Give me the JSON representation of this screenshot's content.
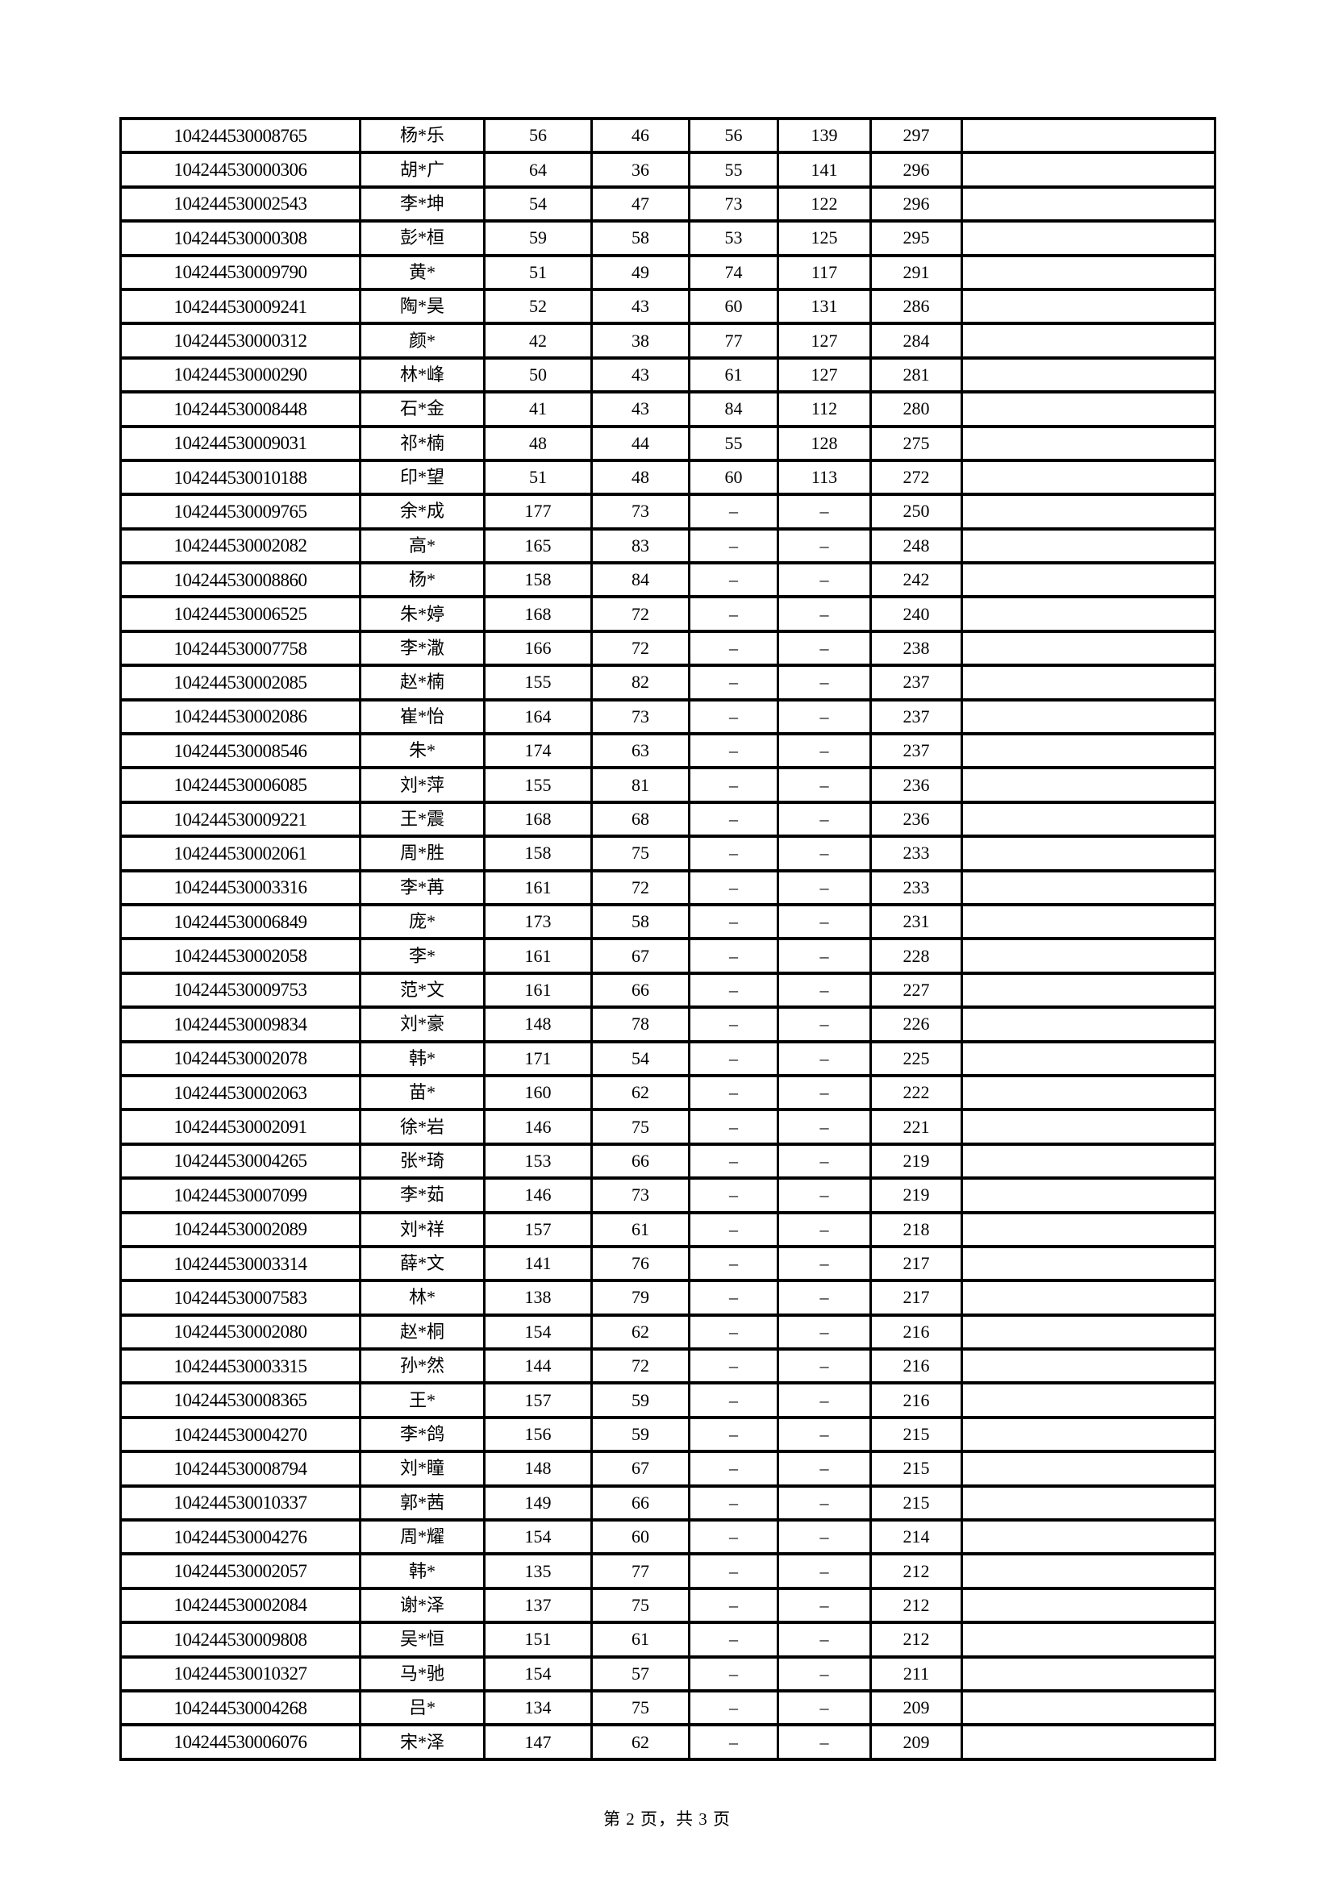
{
  "footer": {
    "text": "第 2 页，共 3 页"
  },
  "table": {
    "rows": [
      {
        "cells": [
          "104244530008765",
          "杨*乐",
          "56",
          "46",
          "56",
          "139",
          "297",
          ""
        ]
      },
      {
        "cells": [
          "104244530000306",
          "胡*广",
          "64",
          "36",
          "55",
          "141",
          "296",
          ""
        ]
      },
      {
        "cells": [
          "104244530002543",
          "李*坤",
          "54",
          "47",
          "73",
          "122",
          "296",
          ""
        ]
      },
      {
        "cells": [
          "104244530000308",
          "彭*桓",
          "59",
          "58",
          "53",
          "125",
          "295",
          ""
        ]
      },
      {
        "cells": [
          "104244530009790",
          "黄*",
          "51",
          "49",
          "74",
          "117",
          "291",
          ""
        ]
      },
      {
        "cells": [
          "104244530009241",
          "陶*昊",
          "52",
          "43",
          "60",
          "131",
          "286",
          ""
        ]
      },
      {
        "cells": [
          "104244530000312",
          "颜*",
          "42",
          "38",
          "77",
          "127",
          "284",
          ""
        ]
      },
      {
        "cells": [
          "104244530000290",
          "林*峰",
          "50",
          "43",
          "61",
          "127",
          "281",
          ""
        ]
      },
      {
        "cells": [
          "104244530008448",
          "石*金",
          "41",
          "43",
          "84",
          "112",
          "280",
          ""
        ]
      },
      {
        "cells": [
          "104244530009031",
          "祁*楠",
          "48",
          "44",
          "55",
          "128",
          "275",
          ""
        ]
      },
      {
        "cells": [
          "104244530010188",
          "印*望",
          "51",
          "48",
          "60",
          "113",
          "272",
          ""
        ]
      },
      {
        "cells": [
          "104244530009765",
          "余*成",
          "177",
          "73",
          "–",
          "–",
          "250",
          ""
        ]
      },
      {
        "cells": [
          "104244530002082",
          "高*",
          "165",
          "83",
          "–",
          "–",
          "248",
          ""
        ]
      },
      {
        "cells": [
          "104244530008860",
          "杨*",
          "158",
          "84",
          "–",
          "–",
          "242",
          ""
        ]
      },
      {
        "cells": [
          "104244530006525",
          "朱*婷",
          "168",
          "72",
          "–",
          "–",
          "240",
          ""
        ]
      },
      {
        "cells": [
          "104244530007758",
          "李*潵",
          "166",
          "72",
          "–",
          "–",
          "238",
          ""
        ]
      },
      {
        "cells": [
          "104244530002085",
          "赵*楠",
          "155",
          "82",
          "–",
          "–",
          "237",
          ""
        ]
      },
      {
        "cells": [
          "104244530002086",
          "崔*怡",
          "164",
          "73",
          "–",
          "–",
          "237",
          ""
        ]
      },
      {
        "cells": [
          "104244530008546",
          "朱*",
          "174",
          "63",
          "–",
          "–",
          "237",
          ""
        ]
      },
      {
        "cells": [
          "104244530006085",
          "刘*萍",
          "155",
          "81",
          "–",
          "–",
          "236",
          ""
        ]
      },
      {
        "cells": [
          "104244530009221",
          "王*震",
          "168",
          "68",
          "–",
          "–",
          "236",
          ""
        ]
      },
      {
        "cells": [
          "104244530002061",
          "周*胜",
          "158",
          "75",
          "–",
          "–",
          "233",
          ""
        ]
      },
      {
        "cells": [
          "104244530003316",
          "李*苒",
          "161",
          "72",
          "–",
          "–",
          "233",
          ""
        ]
      },
      {
        "cells": [
          "104244530006849",
          "庞*",
          "173",
          "58",
          "–",
          "–",
          "231",
          ""
        ]
      },
      {
        "cells": [
          "104244530002058",
          "李*",
          "161",
          "67",
          "–",
          "–",
          "228",
          ""
        ]
      },
      {
        "cells": [
          "104244530009753",
          "范*文",
          "161",
          "66",
          "–",
          "–",
          "227",
          ""
        ]
      },
      {
        "cells": [
          "104244530009834",
          "刘*豪",
          "148",
          "78",
          "–",
          "–",
          "226",
          ""
        ]
      },
      {
        "cells": [
          "104244530002078",
          "韩*",
          "171",
          "54",
          "–",
          "–",
          "225",
          ""
        ]
      },
      {
        "cells": [
          "104244530002063",
          "苗*",
          "160",
          "62",
          "–",
          "–",
          "222",
          ""
        ]
      },
      {
        "cells": [
          "104244530002091",
          "徐*岩",
          "146",
          "75",
          "–",
          "–",
          "221",
          ""
        ]
      },
      {
        "cells": [
          "104244530004265",
          "张*琦",
          "153",
          "66",
          "–",
          "–",
          "219",
          ""
        ]
      },
      {
        "cells": [
          "104244530007099",
          "李*茹",
          "146",
          "73",
          "–",
          "–",
          "219",
          ""
        ]
      },
      {
        "cells": [
          "104244530002089",
          "刘*祥",
          "157",
          "61",
          "–",
          "–",
          "218",
          ""
        ]
      },
      {
        "cells": [
          "104244530003314",
          "薛*文",
          "141",
          "76",
          "–",
          "–",
          "217",
          ""
        ]
      },
      {
        "cells": [
          "104244530007583",
          "林*",
          "138",
          "79",
          "–",
          "–",
          "217",
          ""
        ]
      },
      {
        "cells": [
          "104244530002080",
          "赵*桐",
          "154",
          "62",
          "–",
          "–",
          "216",
          ""
        ]
      },
      {
        "cells": [
          "104244530003315",
          "孙*然",
          "144",
          "72",
          "–",
          "–",
          "216",
          ""
        ]
      },
      {
        "cells": [
          "104244530008365",
          "王*",
          "157",
          "59",
          "–",
          "–",
          "216",
          ""
        ]
      },
      {
        "cells": [
          "104244530004270",
          "李*鸽",
          "156",
          "59",
          "–",
          "–",
          "215",
          ""
        ]
      },
      {
        "cells": [
          "104244530008794",
          "刘*瞳",
          "148",
          "67",
          "–",
          "–",
          "215",
          ""
        ]
      },
      {
        "cells": [
          "104244530010337",
          "郭*茜",
          "149",
          "66",
          "–",
          "–",
          "215",
          ""
        ]
      },
      {
        "cells": [
          "104244530004276",
          "周*耀",
          "154",
          "60",
          "–",
          "–",
          "214",
          ""
        ]
      },
      {
        "cells": [
          "104244530002057",
          "韩*",
          "135",
          "77",
          "–",
          "–",
          "212",
          ""
        ]
      },
      {
        "cells": [
          "104244530002084",
          "谢*泽",
          "137",
          "75",
          "–",
          "–",
          "212",
          ""
        ]
      },
      {
        "cells": [
          "104244530009808",
          "吴*恒",
          "151",
          "61",
          "–",
          "–",
          "212",
          ""
        ]
      },
      {
        "cells": [
          "104244530010327",
          "马*驰",
          "154",
          "57",
          "–",
          "–",
          "211",
          ""
        ]
      },
      {
        "cells": [
          "104244530004268",
          "吕*",
          "134",
          "75",
          "–",
          "–",
          "209",
          ""
        ]
      },
      {
        "cells": [
          "104244530006076",
          "宋*泽",
          "147",
          "62",
          "–",
          "–",
          "209",
          ""
        ]
      }
    ]
  }
}
